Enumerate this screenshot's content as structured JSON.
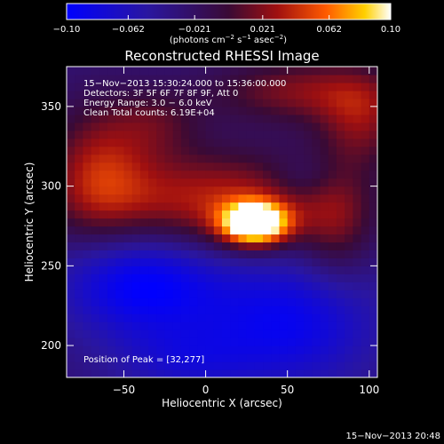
{
  "chart_data": {
    "type": "heatmap",
    "title": "Reconstructed RHESSI Image",
    "xlabel": "Heliocentric X (arcsec)",
    "ylabel": "Heliocentric Y (arcsec)",
    "xlim": [
      -85,
      105
    ],
    "ylim": [
      180,
      375
    ],
    "x_ticks": [
      -50,
      0,
      50,
      100
    ],
    "y_ticks": [
      200,
      250,
      300,
      350
    ],
    "x_tick_labels": [
      "−50",
      "0",
      "50",
      "100"
    ],
    "y_tick_labels": [
      "200",
      "250",
      "300",
      "350"
    ],
    "colorbar": {
      "range": [
        -0.1,
        0.1
      ],
      "ticks": [
        -0.1,
        -0.062,
        -0.021,
        0.021,
        0.062,
        0.1
      ],
      "tick_labels": [
        "−0.10",
        "−0.062",
        "−0.021",
        "0.021",
        "0.062",
        "0.10"
      ],
      "units_prefix": "(photons cm",
      "units_exp1": "−2",
      "units_mid": " s",
      "units_exp2": "−1",
      "units_mid2": " asec",
      "units_exp3": "−2",
      "units_suffix": ")"
    },
    "info_lines": [
      "15−Nov−2013 15:30:24.000 to 15:36:00.000",
      "Detectors: 3F 5F 6F 7F 8F 9F, Att 0",
      "Energy Range: 3.0 − 6.0 keV",
      "Clean     Total counts: 6.19E+04"
    ],
    "peak_label": "Position of Peak = [32,277]",
    "peak": [
      32,
      277
    ],
    "blobs": [
      {
        "x": 30,
        "y": 277,
        "sx": 14,
        "sy": 9,
        "amp": 0.16
      },
      {
        "x": 5,
        "y": 290,
        "sx": 55,
        "sy": 22,
        "amp": 0.07
      },
      {
        "x": 60,
        "y": 360,
        "sx": 40,
        "sy": 14,
        "amp": 0.05
      },
      {
        "x": 95,
        "y": 340,
        "sx": 18,
        "sy": 20,
        "amp": 0.045
      },
      {
        "x": -65,
        "y": 310,
        "sx": 22,
        "sy": 30,
        "amp": 0.055
      },
      {
        "x": -30,
        "y": 340,
        "sx": 20,
        "sy": 15,
        "amp": 0.03
      },
      {
        "x": 80,
        "y": 275,
        "sx": 15,
        "sy": 25,
        "amp": 0.035
      },
      {
        "x": 60,
        "y": 305,
        "sx": 15,
        "sy": 10,
        "amp": -0.02
      },
      {
        "x": -40,
        "y": 240,
        "sx": 35,
        "sy": 25,
        "amp": -0.07
      },
      {
        "x": 50,
        "y": 215,
        "sx": 40,
        "sy": 30,
        "amp": -0.06
      },
      {
        "x": -15,
        "y": 190,
        "sx": 30,
        "sy": 15,
        "amp": -0.03
      }
    ]
  },
  "footer_date": "15−Nov−2013 20:48"
}
